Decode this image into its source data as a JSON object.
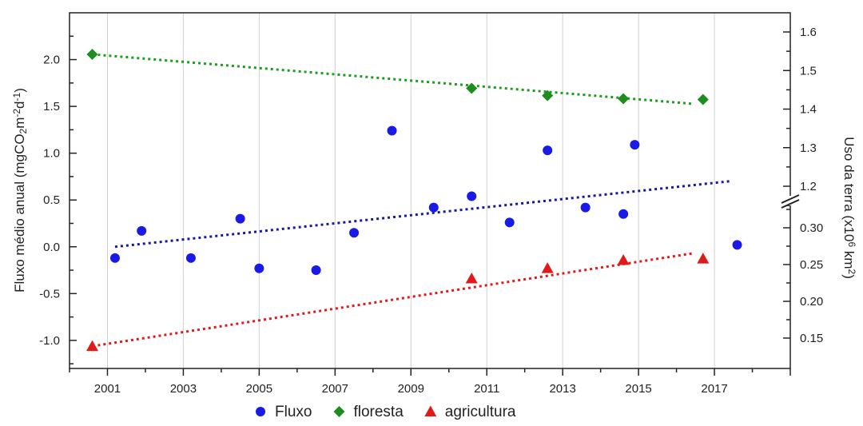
{
  "chart_data": {
    "type": "scatter",
    "x_ticks": [
      "2001",
      "2003",
      "2005",
      "2007",
      "2009",
      "2011",
      "2013",
      "2015",
      "2017"
    ],
    "xlim": [
      2000.0,
      2019.0
    ],
    "left_axis": {
      "label_parts": [
        "Fluxo médio anual (mgCO",
        "2",
        "m",
        "-2",
        "d",
        "-1",
        ")"
      ],
      "ylim": [
        -1.3,
        2.5
      ],
      "ticks": [
        "-1.0",
        "-0.5",
        "0.0",
        "0.5",
        "1.0",
        "1.5",
        "2.0"
      ],
      "tick_values": [
        -1.0,
        -0.5,
        0.0,
        0.5,
        1.0,
        1.5,
        2.0
      ]
    },
    "right_axis": {
      "label_parts": [
        "Uso da terra (x10",
        "6",
        " km",
        "2",
        ")"
      ],
      "break": true,
      "upper_ticks": [
        "1.2",
        "1.3",
        "1.4",
        "1.5",
        "1.6"
      ],
      "upper_tick_values": [
        1.2,
        1.3,
        1.4,
        1.5,
        1.6
      ],
      "lower_ticks": [
        "0.15",
        "0.20",
        "0.25",
        "0.30"
      ],
      "lower_tick_values": [
        0.15,
        0.2,
        0.25,
        0.3
      ]
    },
    "grid": "vertical",
    "legend_position": "bottom",
    "series": [
      {
        "name": "Fluxo",
        "color": "#1a1ae6",
        "marker": "circle",
        "axis": "left",
        "points": [
          [
            2001.2,
            -0.12
          ],
          [
            2001.9,
            0.17
          ],
          [
            2003.2,
            -0.12
          ],
          [
            2004.5,
            0.3
          ],
          [
            2005.0,
            -0.23
          ],
          [
            2006.5,
            -0.25
          ],
          [
            2007.5,
            0.15
          ],
          [
            2008.5,
            1.24
          ],
          [
            2009.6,
            0.42
          ],
          [
            2010.6,
            0.54
          ],
          [
            2011.6,
            0.26
          ],
          [
            2012.6,
            1.03
          ],
          [
            2013.6,
            0.42
          ],
          [
            2014.6,
            0.35
          ],
          [
            2014.9,
            1.09
          ],
          [
            2017.6,
            0.02
          ]
        ],
        "trend": {
          "color": "#1a1a99",
          "from": [
            2001.2,
            0.0
          ],
          "to": [
            2017.4,
            0.7
          ]
        }
      },
      {
        "name": "floresta",
        "color": "#1e8c1e",
        "marker": "diamond",
        "axis": "right",
        "points": [
          [
            2000.6,
            1.542
          ],
          [
            2010.6,
            1.454
          ],
          [
            2012.6,
            1.435
          ],
          [
            2014.6,
            1.427
          ],
          [
            2016.7,
            1.425
          ]
        ],
        "trend": {
          "color": "#1e9c1e",
          "from": [
            2000.6,
            1.542
          ],
          "to": [
            2016.4,
            1.414
          ]
        }
      },
      {
        "name": "agricultura",
        "color": "#e01a1a",
        "marker": "triangle",
        "axis": "right",
        "points": [
          [
            2000.6,
            0.139
          ],
          [
            2010.6,
            0.231
          ],
          [
            2012.6,
            0.245
          ],
          [
            2014.6,
            0.256
          ],
          [
            2016.7,
            0.258
          ]
        ],
        "trend": {
          "color": "#e01a1a",
          "from": [
            2000.6,
            0.139
          ],
          "to": [
            2016.4,
            0.265
          ]
        }
      }
    ]
  }
}
